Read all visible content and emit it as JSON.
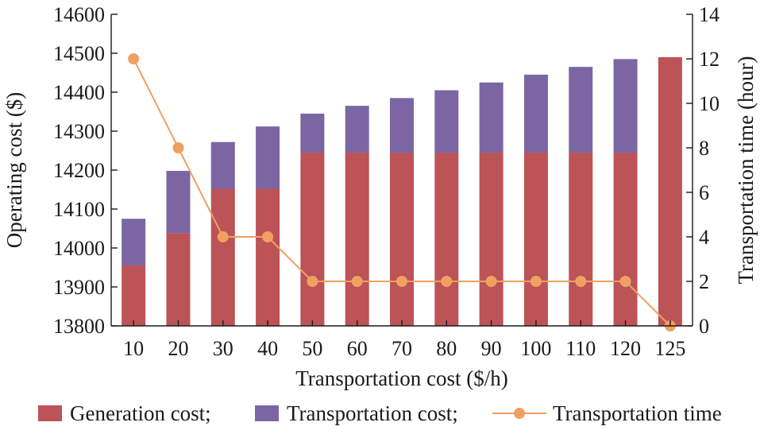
{
  "chart_data": {
    "type": "bar",
    "stacked": true,
    "categories": [
      "10",
      "20",
      "30",
      "40",
      "50",
      "60",
      "70",
      "80",
      "90",
      "100",
      "110",
      "120",
      "125"
    ],
    "xlabel": "Transportation cost ($/h)",
    "ylabel": "Operating cost ($)",
    "y2label": "Transportation time (hour)",
    "ylim": [
      13800,
      14600
    ],
    "yticks": [
      13800,
      13900,
      14000,
      14100,
      14200,
      14300,
      14400,
      14500,
      14600
    ],
    "y2lim": [
      0,
      14
    ],
    "y2ticks": [
      0,
      2,
      4,
      6,
      8,
      10,
      12,
      14
    ],
    "series": [
      {
        "name": "Generation cost;",
        "kind": "bar",
        "color": "#bb5357",
        "values": [
          13955,
          14038,
          14152,
          14152,
          14245,
          14245,
          14245,
          14245,
          14245,
          14245,
          14245,
          14245,
          14490
        ]
      },
      {
        "name": "Transportation cost;",
        "kind": "bar",
        "color": "#7b66a3",
        "values": [
          120,
          160,
          120,
          160,
          100,
          120,
          140,
          160,
          180,
          200,
          220,
          240,
          0
        ]
      },
      {
        "name": "Transportation time",
        "kind": "line",
        "axis": "right",
        "color": "#f0a060",
        "values": [
          12,
          8,
          4,
          4,
          2,
          2,
          2,
          2,
          2,
          2,
          2,
          2,
          0
        ]
      }
    ],
    "legend_position": "bottom"
  }
}
